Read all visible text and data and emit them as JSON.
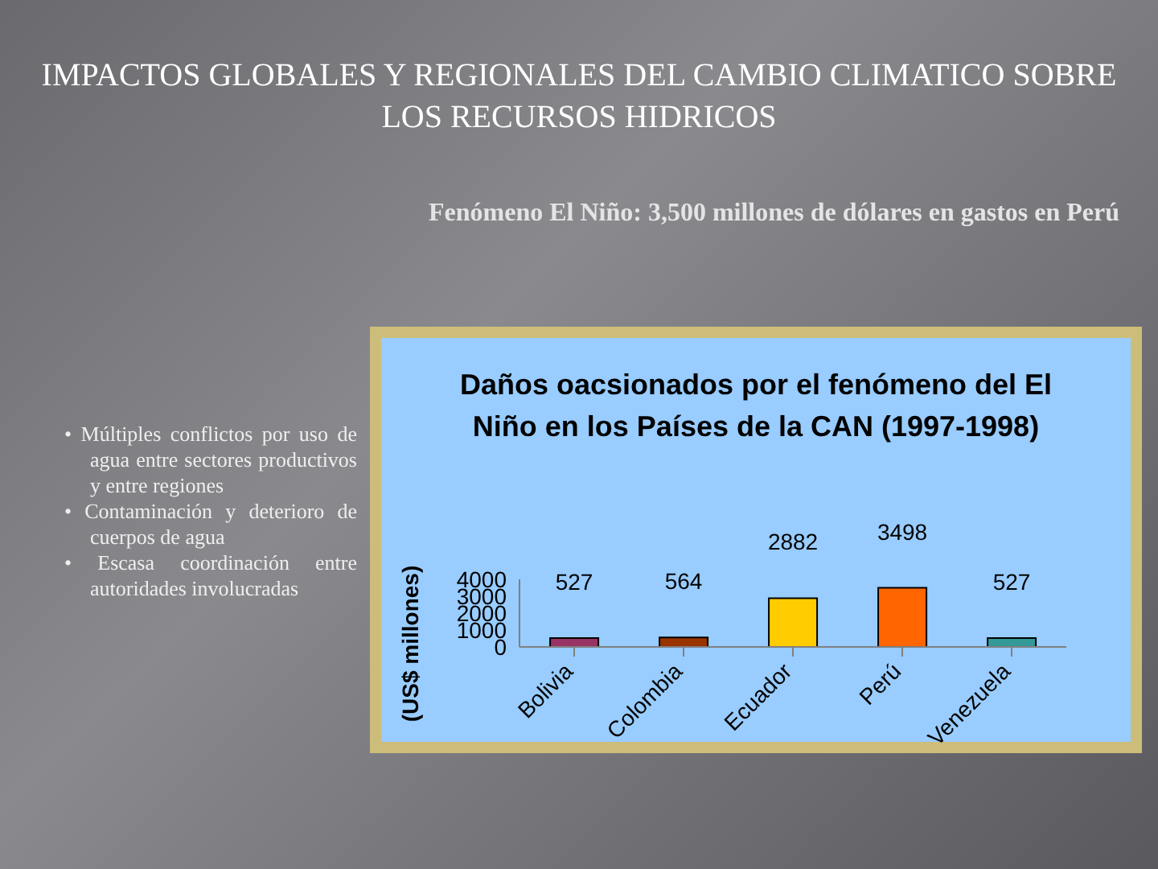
{
  "chart_data": {
    "type": "bar",
    "title": "Daños oacsionados por el fenómeno del El Niño en los Países de la CAN (1997-1998)",
    "ylabel": "(US$ millones)",
    "categories": [
      "Bolivia",
      "Colombia",
      "Ecuador",
      "Perú",
      "Venezuela"
    ],
    "values": [
      527,
      564,
      2882,
      3498,
      527
    ],
    "colors": [
      "#993366",
      "#993300",
      "#ffcc00",
      "#ff6600",
      "#339999"
    ],
    "ylim": [
      0,
      4000
    ],
    "yticks": [
      0,
      1000,
      2000,
      3000,
      4000
    ],
    "data_labels": true,
    "grid": false,
    "legend": false,
    "annotations": [
      "IMPACTOS GLOBALES Y REGIONALES DEL CAMBIO CLIMATICO SOBRE LOS RECURSOS HIDRICOS",
      "Fenómeno El Niño: 3,500 millones de dólares en gastos en Perú",
      "• Múltiples conflictos por uso de agua entre sectores productivos y entre regiones",
      "• Contaminación y deterioro de cuerpos de agua",
      "• Escasa coordinación entre autoridades involucradas"
    ]
  }
}
